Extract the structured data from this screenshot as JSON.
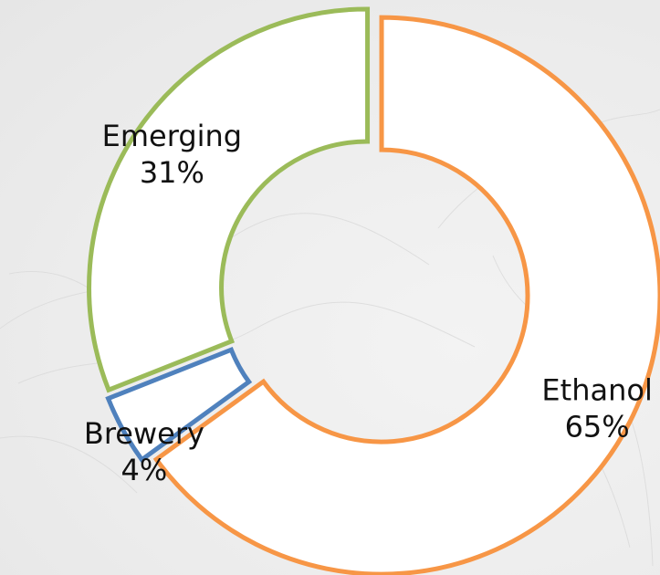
{
  "chart_data": {
    "type": "pie",
    "donut": true,
    "title": "",
    "legend": "none",
    "slices": [
      {
        "label": "Ethanol",
        "value": 65,
        "value_label": "65%",
        "color": "#f79646"
      },
      {
        "label": "Brewery",
        "value": 4,
        "value_label": "4%",
        "color": "#4f81bd"
      },
      {
        "label": "Emerging",
        "value": 31,
        "value_label": "31%",
        "color": "#9bbb59"
      }
    ],
    "fill_color": "#ffffff",
    "start_angle_deg": 0,
    "direction": "clockwise",
    "exploded": true
  },
  "background": {
    "color": "#efefef",
    "pattern": "faint-leaf-watermark"
  }
}
